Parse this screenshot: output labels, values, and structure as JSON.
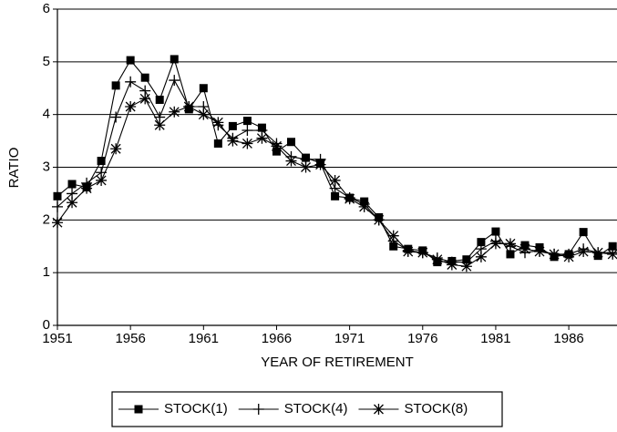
{
  "chart_data": {
    "type": "line",
    "x_label": "YEAR OF RETIREMENT",
    "y_label": "RATIO",
    "x": [
      1951,
      1952,
      1953,
      1954,
      1955,
      1956,
      1957,
      1958,
      1959,
      1960,
      1961,
      1962,
      1963,
      1964,
      1965,
      1966,
      1967,
      1968,
      1969,
      1970,
      1971,
      1972,
      1973,
      1974,
      1975,
      1976,
      1977,
      1978,
      1979,
      1980,
      1981,
      1982,
      1983,
      1984,
      1985,
      1986,
      1987,
      1988,
      1989
    ],
    "series": [
      {
        "name": "STOCK(1)",
        "color": "#000000",
        "marker": "square",
        "values": [
          2.45,
          2.68,
          2.62,
          3.12,
          4.55,
          5.03,
          4.7,
          4.28,
          5.05,
          4.1,
          4.5,
          3.45,
          3.78,
          3.88,
          3.75,
          3.3,
          3.48,
          3.18,
          3.08,
          2.45,
          2.42,
          2.35,
          2.05,
          1.5,
          1.45,
          1.42,
          1.2,
          1.22,
          1.25,
          1.58,
          1.78,
          1.35,
          1.52,
          1.48,
          1.3,
          1.35,
          1.77,
          1.32,
          1.5
        ]
      },
      {
        "name": "STOCK(4)",
        "color": "#000000",
        "marker": "plus",
        "values": [
          2.25,
          2.5,
          2.7,
          2.9,
          3.95,
          4.62,
          4.45,
          3.95,
          4.65,
          4.15,
          4.15,
          3.8,
          3.55,
          3.7,
          3.7,
          3.45,
          3.2,
          3.15,
          3.15,
          2.6,
          2.42,
          2.3,
          2.0,
          1.6,
          1.42,
          1.38,
          1.28,
          1.2,
          1.2,
          1.45,
          1.6,
          1.5,
          1.38,
          1.42,
          1.35,
          1.35,
          1.45,
          1.38,
          1.38
        ]
      },
      {
        "name": "STOCK(8)",
        "color": "#000000",
        "marker": "asterisk",
        "values": [
          1.95,
          2.33,
          2.6,
          2.75,
          3.35,
          4.15,
          4.3,
          3.8,
          4.05,
          4.15,
          4.0,
          3.85,
          3.5,
          3.45,
          3.55,
          3.4,
          3.12,
          3.0,
          3.05,
          2.75,
          2.4,
          2.25,
          2.0,
          1.7,
          1.4,
          1.38,
          1.25,
          1.15,
          1.12,
          1.3,
          1.55,
          1.55,
          1.45,
          1.4,
          1.35,
          1.3,
          1.4,
          1.38,
          1.35
        ]
      }
    ],
    "xlim": [
      1951,
      1989.3
    ],
    "xticks": [
      1951,
      1956,
      1961,
      1966,
      1971,
      1976,
      1981,
      1986
    ],
    "ylim": [
      0,
      6
    ],
    "yticks": [
      0,
      1,
      2,
      3,
      4,
      5,
      6
    ],
    "grid": true,
    "legend": "bottom"
  }
}
